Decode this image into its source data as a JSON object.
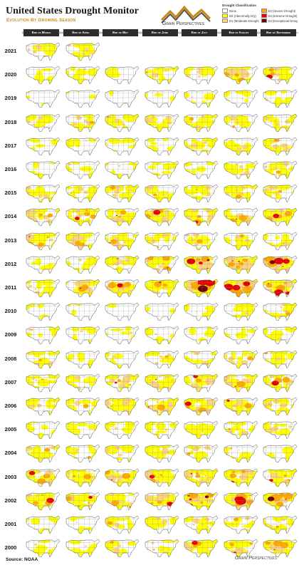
{
  "header": {
    "title": "United States Drought Monitor",
    "subtitle": "Evolution By Growing Season",
    "logo_text": "Grain Perspectives"
  },
  "legend": {
    "title": "Drought Classification",
    "items": [
      {
        "label": "None",
        "color": "#ffffff"
      },
      {
        "label": "D0 (Abnormally Dry)",
        "color": "#ffff00"
      },
      {
        "label": "D1 (Moderate Drought)",
        "color": "#fcd37f"
      },
      {
        "label": "D2 (Severe Drought)",
        "color": "#ffaa00"
      },
      {
        "label": "D3 (Extreme Drought)",
        "color": "#e60000"
      },
      {
        "label": "D4 (Exceptional Drought)",
        "color": "#730000"
      }
    ]
  },
  "months": [
    "End of March",
    "End of April",
    "End of May",
    "End of June",
    "End of July",
    "End of August",
    "End of September"
  ],
  "years": [
    {
      "year": "2021",
      "maps": [
        2,
        2
      ]
    },
    {
      "year": "2020",
      "maps": [
        1,
        1,
        1,
        2,
        2,
        3,
        3
      ]
    },
    {
      "year": "2019",
      "maps": [
        0,
        0,
        0,
        0,
        1,
        1,
        1
      ]
    },
    {
      "year": "2018",
      "maps": [
        2,
        2,
        2,
        2,
        2,
        2,
        2
      ]
    },
    {
      "year": "2017",
      "maps": [
        1,
        1,
        1,
        1,
        2,
        2,
        2
      ]
    },
    {
      "year": "2016",
      "maps": [
        1,
        1,
        1,
        1,
        1,
        2,
        2
      ]
    },
    {
      "year": "2015",
      "maps": [
        2,
        2,
        2,
        2,
        2,
        2,
        2
      ]
    },
    {
      "year": "2014",
      "maps": [
        3,
        3,
        3,
        3,
        3,
        3,
        3
      ]
    },
    {
      "year": "2013",
      "maps": [
        3,
        3,
        3,
        2,
        2,
        2,
        2
      ]
    },
    {
      "year": "2012",
      "maps": [
        1,
        1,
        2,
        3,
        4,
        4,
        4
      ]
    },
    {
      "year": "2011",
      "maps": [
        2,
        3,
        3,
        3,
        4,
        4,
        4
      ]
    },
    {
      "year": "2010",
      "maps": [
        0,
        0,
        0,
        0,
        1,
        1,
        2
      ]
    },
    {
      "year": "2009",
      "maps": [
        1,
        1,
        1,
        1,
        1,
        1,
        1
      ]
    },
    {
      "year": "2008",
      "maps": [
        2,
        1,
        1,
        2,
        2,
        2,
        2
      ]
    },
    {
      "year": "2007",
      "maps": [
        2,
        2,
        3,
        3,
        3,
        3,
        3
      ]
    },
    {
      "year": "2006",
      "maps": [
        2,
        2,
        3,
        3,
        3,
        3,
        2
      ]
    },
    {
      "year": "2005",
      "maps": [
        1,
        1,
        1,
        1,
        2,
        2,
        2
      ]
    },
    {
      "year": "2004",
      "maps": [
        2,
        2,
        2,
        2,
        2,
        2,
        1
      ]
    },
    {
      "year": "2003",
      "maps": [
        3,
        3,
        3,
        3,
        3,
        3,
        3
      ]
    },
    {
      "year": "2002",
      "maps": [
        3,
        3,
        3,
        3,
        4,
        4,
        4
      ]
    },
    {
      "year": "2001",
      "maps": [
        1,
        1,
        2,
        2,
        2,
        2,
        2
      ]
    },
    {
      "year": "2000",
      "maps": [
        1,
        1,
        2,
        2,
        3,
        3,
        3
      ]
    }
  ],
  "footer": {
    "source": "Source: NOAA",
    "logo_text": "Grain Perspectives"
  }
}
